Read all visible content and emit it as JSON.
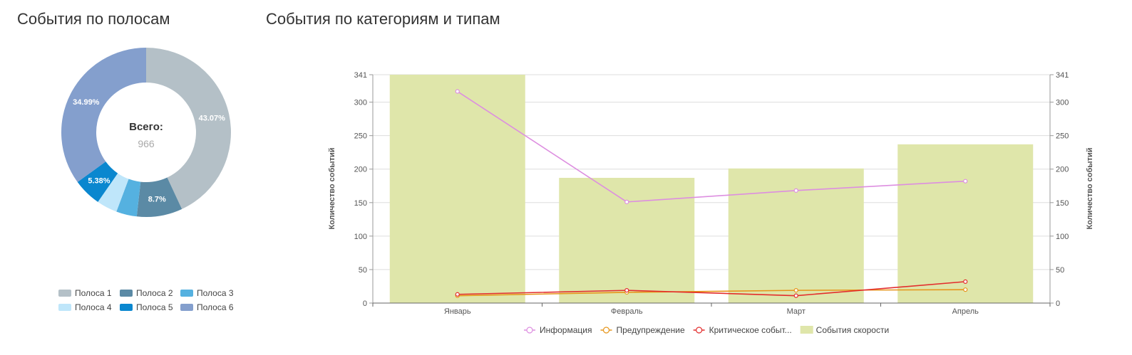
{
  "donut_title": "События по полосам",
  "chart_title": "События по категориям и типам",
  "chart_data": [
    {
      "type": "pie",
      "title": "События по полосам",
      "center_label": "Всего:",
      "center_value": "966",
      "categories": [
        "Полоса 1",
        "Полоса 2",
        "Полоса 3",
        "Полоса 4",
        "Полоса 5",
        "Полоса 6"
      ],
      "values": [
        43.07,
        8.7,
        3.93,
        3.93,
        5.38,
        34.99
      ],
      "labels": [
        "43.07%",
        "8.7%",
        "",
        "",
        "5.38%",
        "34.99%"
      ],
      "colors": [
        "#b4c0c7",
        "#5b8aa5",
        "#55b1e0",
        "#bfe6fa",
        "#0a87cf",
        "#849fcd"
      ],
      "legend_position": "bottom"
    },
    {
      "type": "bar",
      "title": "События по категориям и типам",
      "categories": [
        "Январь",
        "Февраль",
        "Март",
        "Апрель"
      ],
      "ylabel": "Количество событий",
      "ylabel_right": "Количество событий",
      "ylim": [
        0,
        341
      ],
      "yticks": [
        0,
        50,
        100,
        150,
        200,
        250,
        300,
        341
      ],
      "grid": true,
      "legend_position": "bottom",
      "series": [
        {
          "name": "Информация",
          "type": "line",
          "color": "#dd8ee0",
          "values": [
            316,
            151,
            168,
            182
          ]
        },
        {
          "name": "Предупреждение",
          "type": "line",
          "color": "#e6951a",
          "values": [
            11,
            16,
            19,
            20
          ]
        },
        {
          "name": "Критическое событ...",
          "type": "line",
          "color": "#e32d2d",
          "values": [
            13,
            19,
            11,
            32
          ]
        },
        {
          "name": "События скорости",
          "type": "bar",
          "color": "#dfe6aa",
          "values": [
            341,
            187,
            201,
            237
          ]
        }
      ]
    }
  ]
}
